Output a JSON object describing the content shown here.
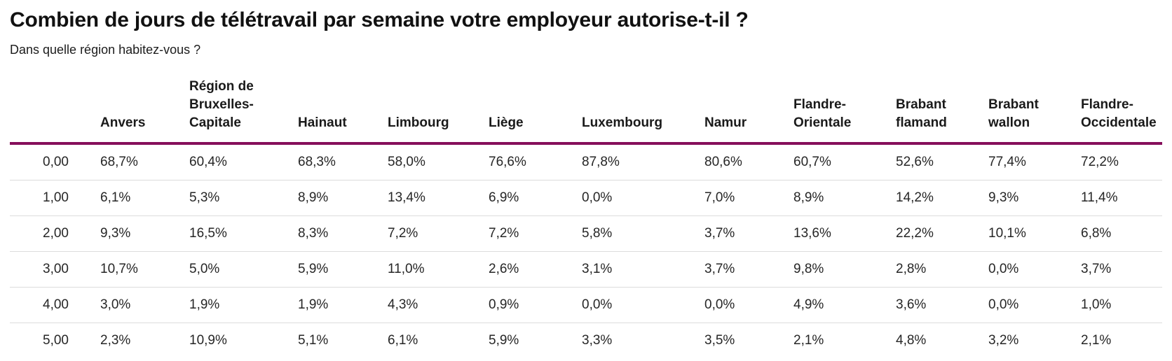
{
  "title": "Combien de jours de télétravail par semaine votre employeur autorise-t-il ?",
  "subtitle": "Dans quelle région habitez-vous ?",
  "colors": {
    "accent_rule": "#850E5B",
    "row_divider": "#dcdcdc"
  },
  "chart_data": {
    "type": "table",
    "title": "Combien de jours de télétravail par semaine votre employeur autorise-t-il ?",
    "question": "Dans quelle région habitez-vous ?",
    "row_header_label": "",
    "columns": [
      "Anvers",
      "Région de Bruxelles-Capitale",
      "Hainaut",
      "Limbourg",
      "Liège",
      "Luxembourg",
      "Namur",
      "Flandre-Orientale",
      "Brabant flamand",
      "Brabant wallon",
      "Flandre-Occidentale"
    ],
    "rows": [
      {
        "label": "0,00",
        "values": [
          "68,7%",
          "60,4%",
          "68,3%",
          "58,0%",
          "76,6%",
          "87,8%",
          "80,6%",
          "60,7%",
          "52,6%",
          "77,4%",
          "72,2%"
        ]
      },
      {
        "label": "1,00",
        "values": [
          "6,1%",
          "5,3%",
          "8,9%",
          "13,4%",
          "6,9%",
          "0,0%",
          "7,0%",
          "8,9%",
          "14,2%",
          "9,3%",
          "11,4%"
        ]
      },
      {
        "label": "2,00",
        "values": [
          "9,3%",
          "16,5%",
          "8,3%",
          "7,2%",
          "7,2%",
          "5,8%",
          "3,7%",
          "13,6%",
          "22,2%",
          "10,1%",
          "6,8%"
        ]
      },
      {
        "label": "3,00",
        "values": [
          "10,7%",
          "5,0%",
          "5,9%",
          "11,0%",
          "2,6%",
          "3,1%",
          "3,7%",
          "9,8%",
          "2,8%",
          "0,0%",
          "3,7%"
        ]
      },
      {
        "label": "4,00",
        "values": [
          "3,0%",
          "1,9%",
          "1,9%",
          "4,3%",
          "0,9%",
          "0,0%",
          "0,0%",
          "4,9%",
          "3,6%",
          "0,0%",
          "1,0%"
        ]
      },
      {
        "label": "5,00",
        "values": [
          "2,3%",
          "10,9%",
          "5,1%",
          "6,1%",
          "5,9%",
          "3,3%",
          "3,5%",
          "2,1%",
          "4,8%",
          "3,2%",
          "2,1%"
        ]
      }
    ]
  }
}
